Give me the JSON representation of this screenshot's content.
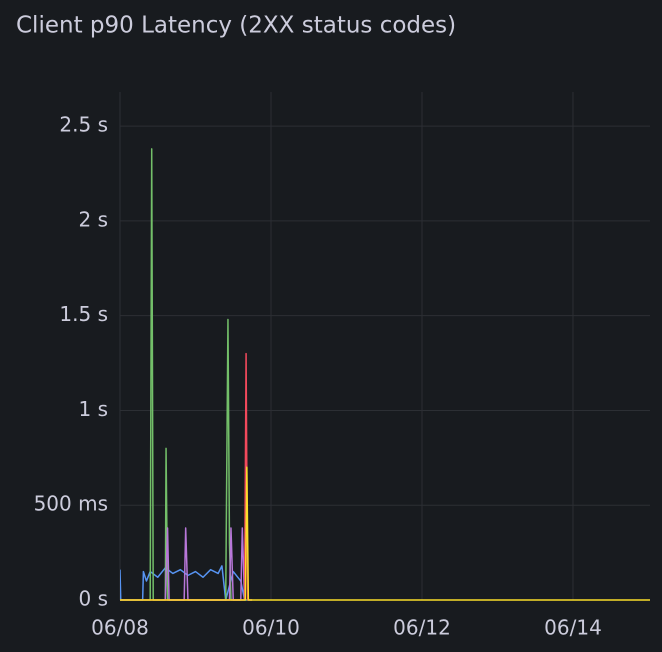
{
  "chart_data": {
    "type": "line",
    "title": "Client p90 Latency (2XX status codes)",
    "xlim": [
      8,
      15.02
    ],
    "xticks": [
      {
        "value": 8,
        "label": "06/08"
      },
      {
        "value": 10,
        "label": "06/10"
      },
      {
        "value": 12,
        "label": "06/12"
      },
      {
        "value": 14,
        "label": "06/14"
      }
    ],
    "ylim": [
      0,
      2.68
    ],
    "yticks": [
      {
        "value": 0,
        "label": "0 s"
      },
      {
        "value": 0.5,
        "label": "500 ms"
      },
      {
        "value": 1,
        "label": "1 s"
      },
      {
        "value": 1.5,
        "label": "1.5 s"
      },
      {
        "value": 2,
        "label": "2 s"
      },
      {
        "value": 2.5,
        "label": "2.5 s"
      }
    ],
    "grid": true,
    "series": [
      {
        "color": "#5794f2",
        "x": [
          8.0,
          8.01,
          8.3,
          8.31,
          8.35,
          8.4,
          8.5,
          8.6,
          8.7,
          8.8,
          8.9,
          9.0,
          9.1,
          9.2,
          9.3,
          9.35,
          9.4,
          9.5,
          9.6,
          9.65,
          9.7
        ],
        "values": [
          0.16,
          0,
          0,
          0.15,
          0.1,
          0.15,
          0.12,
          0.17,
          0.14,
          0.16,
          0.13,
          0.15,
          0.12,
          0.16,
          0.14,
          0.18,
          0,
          0.15,
          0.1,
          0,
          0
        ]
      },
      {
        "color": "#73bf69",
        "x": [
          8.0,
          8.4,
          8.42,
          8.44,
          8.6,
          8.61,
          8.63,
          9.4,
          9.43,
          9.45,
          9.47,
          9.75
        ],
        "values": [
          0,
          0,
          2.38,
          0,
          0,
          0.8,
          0,
          0,
          1.48,
          0.3,
          0,
          0
        ]
      },
      {
        "color": "#b877d9",
        "x": [
          8.6,
          8.63,
          8.65,
          8.85,
          8.87,
          8.9,
          9.45,
          9.47,
          9.5,
          9.6,
          9.62,
          9.65
        ],
        "values": [
          0,
          0.38,
          0,
          0,
          0.38,
          0,
          0,
          0.38,
          0,
          0,
          0.38,
          0
        ]
      },
      {
        "color": "#f2495c",
        "x": [
          8.0,
          9.65,
          9.67,
          9.69,
          9.75
        ],
        "values": [
          0,
          0,
          1.3,
          0,
          0
        ]
      },
      {
        "color": "#fade2a",
        "x": [
          8.0,
          9.66,
          9.68,
          9.7,
          15.02
        ],
        "values": [
          0,
          0,
          0.7,
          0,
          0
        ]
      }
    ]
  }
}
